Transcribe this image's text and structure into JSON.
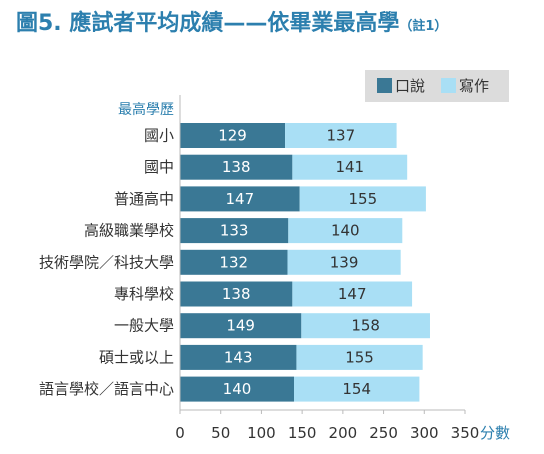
{
  "figure": {
    "title": "圖5. 應試者平均成績——依畢業最高學",
    "note": "（註1）"
  },
  "colors": {
    "speaking": "#3a7895",
    "writing": "#a9dff5",
    "axis_text": "#2c7fae",
    "legend_bg": "#dcdcdc",
    "grid": "#bbbbbb"
  },
  "chart_data": {
    "type": "bar",
    "orientation": "horizontal",
    "stacked": true,
    "ylabel": "最高學歷",
    "xlabel": "分數",
    "categories": [
      "國小",
      "國中",
      "普通高中",
      "高級職業學校",
      "技術學院／科技大學",
      "專科學校",
      "一般大學",
      "碩士或以上",
      "語言學校／語言中心"
    ],
    "series": [
      {
        "name": "口說",
        "values": [
          129,
          138,
          147,
          133,
          132,
          138,
          149,
          143,
          140
        ]
      },
      {
        "name": "寫作",
        "values": [
          137,
          141,
          155,
          140,
          139,
          147,
          158,
          155,
          154
        ]
      }
    ],
    "xlim": [
      0,
      350
    ],
    "xticks": [
      0,
      50,
      100,
      150,
      200,
      250,
      300,
      350
    ],
    "legend_position": "top-right",
    "grid": false
  }
}
